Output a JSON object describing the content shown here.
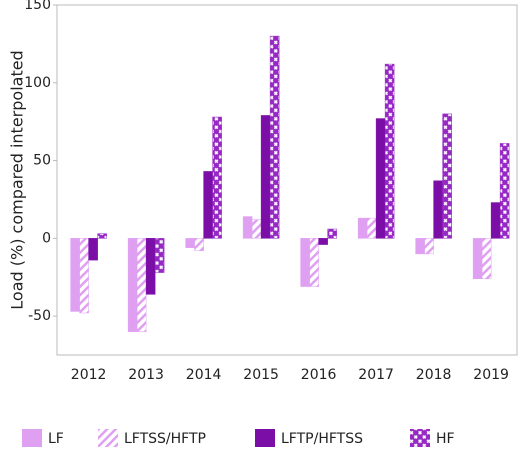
{
  "chart_data": {
    "type": "bar",
    "y_label": "Load (%) compared interpolated",
    "categories": [
      "2012",
      "2013",
      "2014",
      "2015",
      "2016",
      "2017",
      "2018",
      "2019"
    ],
    "series": [
      {
        "name": "LF",
        "color": "#e0a0f2",
        "pattern": "solid",
        "values": [
          -47,
          -60,
          -6,
          14,
          -31,
          13,
          -10,
          -26
        ]
      },
      {
        "name": "LFTSS/HFTP",
        "color": "#e0a0f2",
        "pattern": "hatch",
        "values": [
          -48,
          -60,
          -8,
          12,
          -31,
          13,
          -10,
          -26
        ]
      },
      {
        "name": "LFTP/HFTSS",
        "color": "#7a0ea6",
        "pattern": "solid",
        "values": [
          -14,
          -36,
          43,
          79,
          -4,
          77,
          37,
          23
        ]
      },
      {
        "name": "HF",
        "color": "#9628c4",
        "pattern": "cross",
        "values": [
          3,
          -22,
          78,
          130,
          6,
          112,
          80,
          61
        ]
      }
    ],
    "ylim": [
      -75,
      150
    ],
    "yticks": [
      -50,
      0,
      50,
      100,
      150
    ],
    "grid": false
  }
}
